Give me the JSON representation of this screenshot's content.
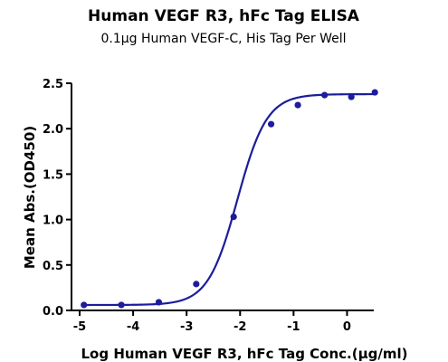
{
  "chart_data": {
    "type": "scatter",
    "title": "Human VEGF R3, hFc Tag ELISA",
    "subtitle": "0.1μg Human VEGF-C, His Tag Per Well",
    "xlabel": "Log Human VEGF R3, hFc Tag Conc.(μg/ml)",
    "ylabel": "Mean Abs.(OD450)",
    "xlim": [
      -5,
      0.5
    ],
    "ylim": [
      0,
      2.5
    ],
    "xticks": [
      -5,
      -4,
      -3,
      -2,
      -1,
      0
    ],
    "xtick_labels": [
      "-5",
      "-4",
      "-3",
      "-2",
      "-1",
      "0"
    ],
    "yticks": [
      0,
      0.5,
      1,
      1.5,
      2,
      2.5
    ],
    "ytick_labels": [
      "0.0",
      "0.5",
      "1.0",
      "1.5",
      "2.0",
      "2.5"
    ],
    "grid": false,
    "points": {
      "x": [
        -4.92,
        -4.22,
        -3.52,
        -2.82,
        -2.12,
        -1.42,
        -0.92,
        -0.42,
        0.08,
        0.52
      ],
      "y": [
        0.06,
        0.06,
        0.09,
        0.29,
        1.03,
        2.05,
        2.26,
        2.37,
        2.35,
        2.4
      ]
    },
    "fit": {
      "model": "4PL",
      "bottom": 0.06,
      "top": 2.38,
      "log_ec50": -2.05,
      "hill": 1.58
    },
    "colors": {
      "series": "#1c1c9c"
    }
  }
}
